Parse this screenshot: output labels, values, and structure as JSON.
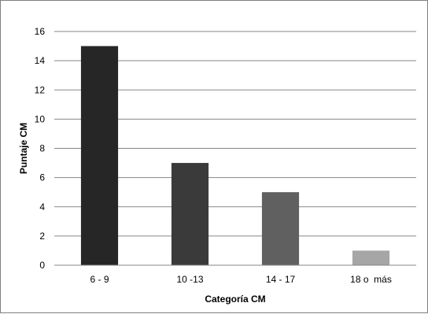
{
  "chart_data": {
    "type": "bar",
    "title": "",
    "xlabel": "Categoría CM",
    "ylabel": "Puntaje CM",
    "categories": [
      "6 - 9",
      "10 -13",
      "14 - 17",
      "18 o  más"
    ],
    "values": [
      15,
      7,
      5,
      1
    ],
    "bar_colors": [
      "#262626",
      "#3a3a3a",
      "#606060",
      "#a6a6a6"
    ],
    "ylim": [
      0,
      16
    ],
    "yticks": [
      0,
      2,
      4,
      6,
      8,
      10,
      12,
      14,
      16
    ],
    "grid": true,
    "gridline_color": "#878787",
    "legend": "none"
  }
}
